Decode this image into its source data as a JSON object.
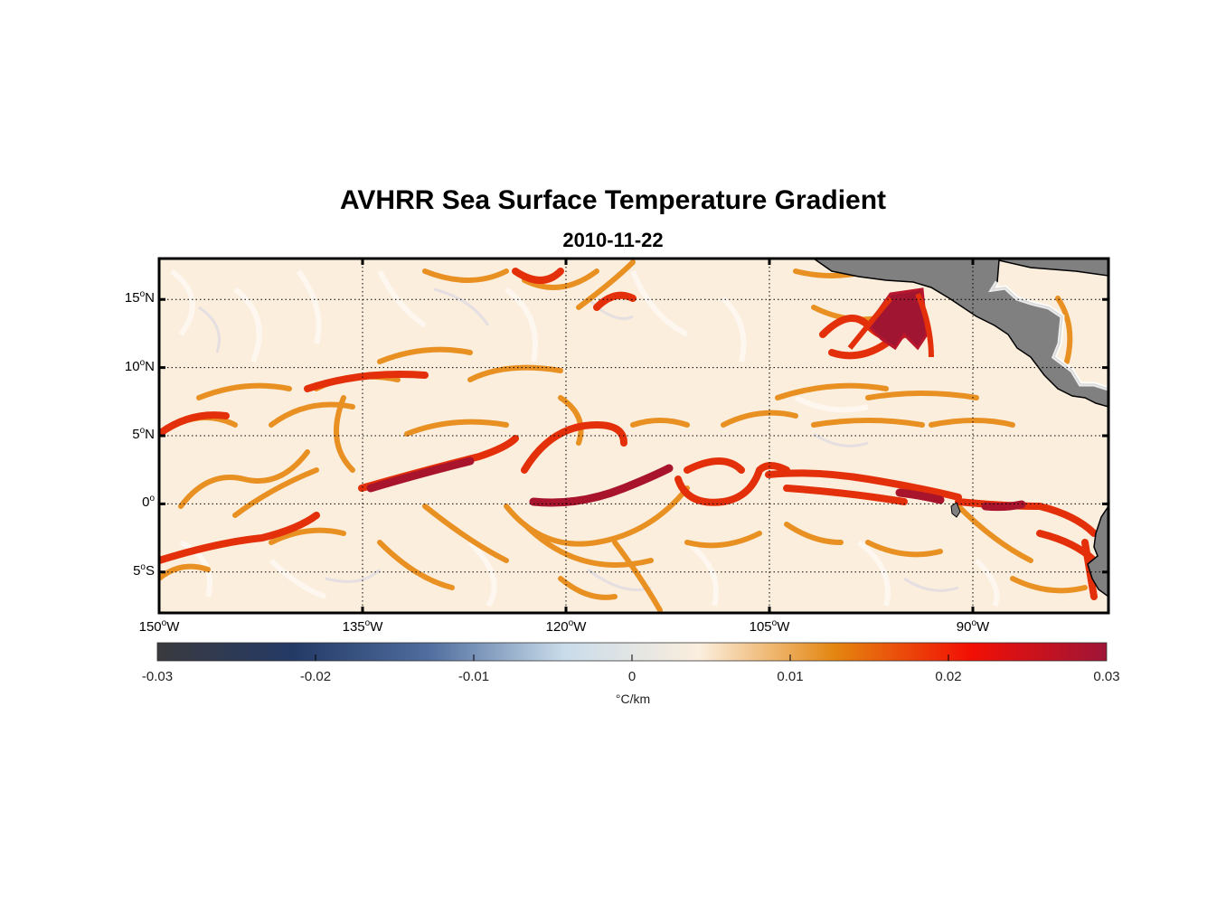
{
  "figure": {
    "title": "AVHRR Sea Surface Temperature Gradient",
    "subtitle": "2010-11-22"
  },
  "map": {
    "lon_range": [
      -150,
      -80
    ],
    "lat_range": [
      -8,
      18
    ],
    "grid": true,
    "land_color": "#808080",
    "ocean_base_color": "#fbeedd",
    "y_ticks": [
      {
        "value": 15,
        "num": "15",
        "hemi": "N"
      },
      {
        "value": 10,
        "num": "10",
        "hemi": "N"
      },
      {
        "value": 5,
        "num": "5",
        "hemi": "N"
      },
      {
        "value": 0,
        "num": "0",
        "hemi": ""
      },
      {
        "value": -5,
        "num": "5",
        "hemi": "S"
      }
    ],
    "x_ticks": [
      {
        "value": -150,
        "num": "150",
        "hemi": "W"
      },
      {
        "value": -135,
        "num": "135",
        "hemi": "W"
      },
      {
        "value": -120,
        "num": "120",
        "hemi": "W"
      },
      {
        "value": -105,
        "num": "105",
        "hemi": "W"
      },
      {
        "value": -90,
        "num": "90",
        "hemi": "W"
      }
    ],
    "degree_symbol": "o"
  },
  "colorbar": {
    "range": [
      -0.03,
      0.03
    ],
    "tick_labels": [
      "-0.03",
      "-0.02",
      "-0.01",
      "0",
      "0.01",
      "0.02",
      "0.03"
    ],
    "unit": "°C/km",
    "stops": [
      "#3a3a3e",
      "#243a66",
      "#4f6d9e",
      "#c9dcea",
      "#fbeedd",
      "#e4850f",
      "#f20f05",
      "#9e1537"
    ]
  }
}
